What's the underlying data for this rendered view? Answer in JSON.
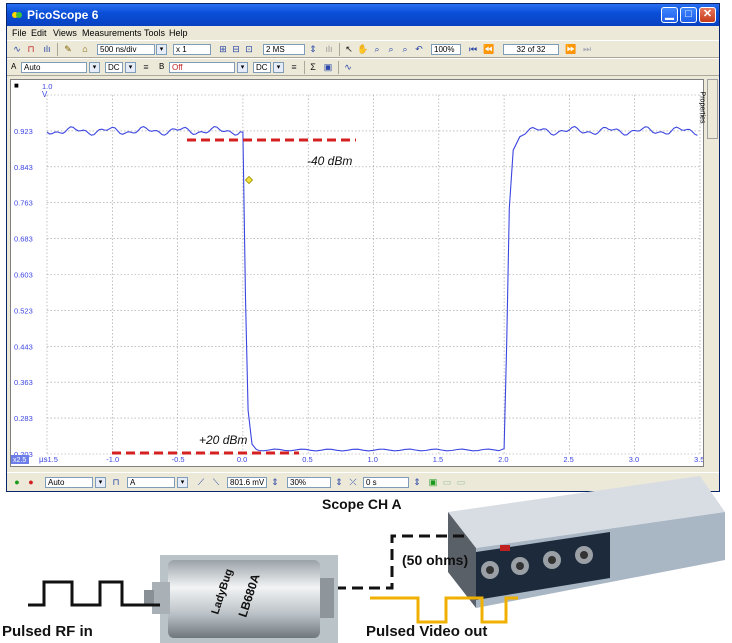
{
  "window": {
    "title": "PicoScope 6",
    "controls": [
      "minimize-icon",
      "maximize-icon",
      "close-icon"
    ]
  },
  "menu": [
    "File",
    "Edit",
    "Views",
    "Measurements",
    "Tools",
    "Help"
  ],
  "toolbar": {
    "timebase": "500 ns/div",
    "multiplier": "x 1",
    "samples": "2 MS",
    "zoom_level": "100%",
    "buffer": "32 of 32"
  },
  "channels": {
    "a_label": "A",
    "a_range": "Auto",
    "a_coupling": "DC",
    "b_label": "B",
    "b_range": "Off",
    "b_coupling": "DC"
  },
  "plot": {
    "y_unit": "V",
    "x_unit": "µs",
    "y_ticks": [
      "1.0",
      "0.923",
      "0.843",
      "0.763",
      "0.683",
      "0.603",
      "0.523",
      "0.443",
      "0.363",
      "0.283",
      "0.203"
    ],
    "x_ticks": [
      "-1.5",
      "-1.0",
      "-0.5",
      "0.0",
      "0.5",
      "1.0",
      "1.5",
      "2.0",
      "2.5",
      "3.0",
      "3.5"
    ],
    "x_badge": "x2.5",
    "annotation_top": "-40 dBm",
    "annotation_bottom": "+20 dBm",
    "trace_color": "#3c46e0",
    "marker_color": "#d42020"
  },
  "statusbar": {
    "trigger_mode": "Auto",
    "trigger_source": "A",
    "threshold": "801.6 mV",
    "pre_trigger": "30%",
    "delay": "0 s"
  },
  "side_panel": {
    "label": "Properties"
  },
  "setup": {
    "scope_label": "Scope CH A",
    "impedance_label": "(50 ohms)",
    "input_label": "Pulsed RF in",
    "output_label": "Pulsed Video out",
    "detector_model": "LB680A",
    "detector_brand": "LadyBug",
    "video_color": "#f0b000"
  }
}
